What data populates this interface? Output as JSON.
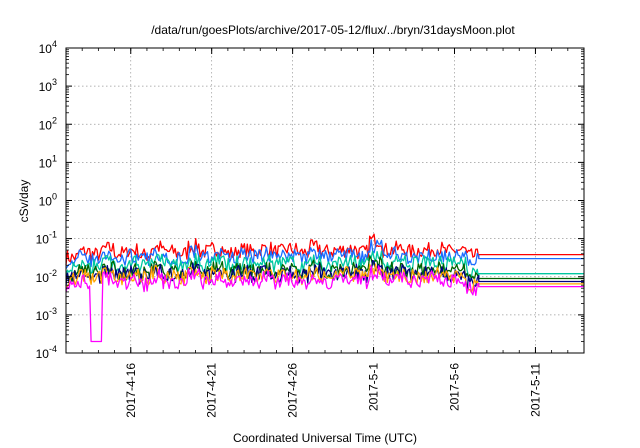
{
  "chart_data": {
    "type": "line",
    "title": "/data/run/goesPlots/archive/2017-05-12/flux/../bryn/31daysMoon.plot",
    "xlabel": "Coordinated Universal Time (UTC)",
    "ylabel": "cSv/day",
    "y_scale": "log",
    "ylim": [
      0.0001,
      10000
    ],
    "xlim": [
      "2017-04-12",
      "2017-05-14"
    ],
    "y_ticks": [
      {
        "base": "10",
        "exp": "-4"
      },
      {
        "base": "10",
        "exp": "-3"
      },
      {
        "base": "10",
        "exp": "-2"
      },
      {
        "base": "10",
        "exp": "-1"
      },
      {
        "base": "10",
        "exp": "0"
      },
      {
        "base": "10",
        "exp": "1"
      },
      {
        "base": "10",
        "exp": "2"
      },
      {
        "base": "10",
        "exp": "3"
      },
      {
        "base": "10",
        "exp": "4"
      }
    ],
    "x_ticks": [
      "2017-4-16",
      "2017-4-21",
      "2017-4-26",
      "2017-5-1",
      "2017-5-6",
      "2017-5-11"
    ],
    "grid": true,
    "data_end": "2017-05-07T12:00",
    "series": [
      {
        "color": "#ff0000",
        "values": [
          0.035,
          0.05,
          0.042,
          0.06,
          0.045,
          0.055,
          0.04,
          0.065,
          0.05,
          0.045,
          0.07,
          0.05,
          0.06,
          0.045,
          0.055,
          0.05,
          0.06,
          0.05,
          0.058,
          0.047,
          0.065,
          0.05,
          0.055,
          0.06,
          0.048,
          0.1,
          0.055,
          0.06,
          0.05,
          0.055,
          0.06,
          0.05,
          0.055,
          0.038
        ],
        "final": 0.038
      },
      {
        "color": "#1a6cff",
        "values": [
          0.028,
          0.035,
          0.03,
          0.04,
          0.032,
          0.038,
          0.03,
          0.045,
          0.035,
          0.032,
          0.05,
          0.036,
          0.042,
          0.033,
          0.04,
          0.036,
          0.043,
          0.036,
          0.041,
          0.034,
          0.046,
          0.036,
          0.04,
          0.043,
          0.035,
          0.065,
          0.04,
          0.043,
          0.036,
          0.04,
          0.043,
          0.036,
          0.04,
          0.03
        ],
        "final": 0.03
      },
      {
        "color": "#00c8a0",
        "values": [
          0.018,
          0.024,
          0.02,
          0.027,
          0.021,
          0.025,
          0.02,
          0.03,
          0.023,
          0.021,
          0.032,
          0.023,
          0.027,
          0.021,
          0.025,
          0.023,
          0.027,
          0.023,
          0.026,
          0.022,
          0.029,
          0.023,
          0.025,
          0.027,
          0.022,
          0.038,
          0.025,
          0.027,
          0.023,
          0.025,
          0.027,
          0.023,
          0.025,
          0.012
        ],
        "final": 0.012
      },
      {
        "color": "#006400",
        "values": [
          0.012,
          0.016,
          0.013,
          0.018,
          0.014,
          0.017,
          0.013,
          0.02,
          0.015,
          0.014,
          0.021,
          0.015,
          0.018,
          0.014,
          0.017,
          0.015,
          0.018,
          0.015,
          0.017,
          0.014,
          0.019,
          0.015,
          0.017,
          0.018,
          0.015,
          0.025,
          0.017,
          0.018,
          0.015,
          0.017,
          0.018,
          0.015,
          0.017,
          0.009
        ],
        "final": 0.009
      },
      {
        "color": "#000080",
        "values": [
          0.01,
          0.013,
          0.011,
          0.015,
          0.012,
          0.014,
          0.011,
          0.016,
          0.012,
          0.011,
          0.017,
          0.012,
          0.015,
          0.011,
          0.014,
          0.012,
          0.015,
          0.012,
          0.014,
          0.011,
          0.016,
          0.012,
          0.014,
          0.015,
          0.012,
          0.02,
          0.014,
          0.015,
          0.012,
          0.014,
          0.015,
          0.012,
          0.014,
          0.0075
        ],
        "final": 0.0075
      },
      {
        "color": "#ffa500",
        "values": [
          0.009,
          0.012,
          0.01,
          0.013,
          0.01,
          0.012,
          0.01,
          0.014,
          0.011,
          0.01,
          0.015,
          0.011,
          0.013,
          0.01,
          0.012,
          0.011,
          0.013,
          0.011,
          0.012,
          0.01,
          0.014,
          0.011,
          0.012,
          0.013,
          0.011,
          0.018,
          0.012,
          0.013,
          0.011,
          0.012,
          0.013,
          0.011,
          0.012,
          0.0065
        ],
        "final": 0.0065
      },
      {
        "color": "#ff00ff",
        "values": [
          0.007,
          0.008,
          0.0002,
          0.01,
          0.007,
          0.009,
          0.007,
          0.011,
          0.008,
          0.007,
          0.012,
          0.008,
          0.01,
          0.007,
          0.009,
          0.008,
          0.01,
          0.008,
          0.009,
          0.007,
          0.011,
          0.008,
          0.009,
          0.01,
          0.008,
          0.014,
          0.009,
          0.01,
          0.008,
          0.009,
          0.01,
          0.008,
          0.009,
          0.0055
        ],
        "final": 0.0055
      }
    ]
  }
}
